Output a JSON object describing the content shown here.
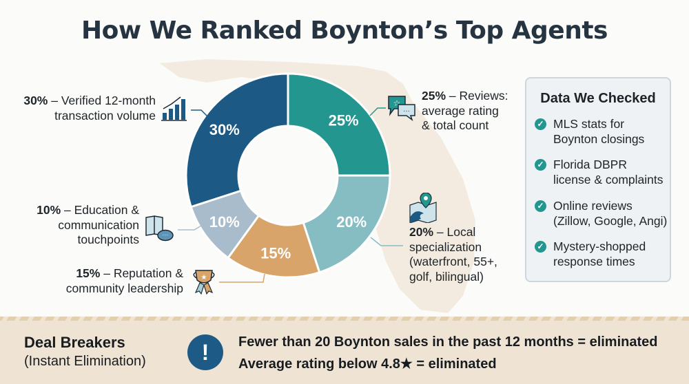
{
  "title": "How We Ranked Boynton’s Top Agents",
  "chart_data": {
    "type": "pie",
    "variant": "donut",
    "title": "How We Ranked Boynton’s Top Agents",
    "slices": [
      {
        "label": "Reviews: average rating & total count",
        "value": 25,
        "display": "25%",
        "color": "#23968f"
      },
      {
        "label": "Local specialization (waterfront, 55+, golf, bilingual)",
        "value": 20,
        "display": "20%",
        "color": "#86bdc3"
      },
      {
        "label": "Reputation & community leadership",
        "value": 15,
        "display": "15%",
        "color": "#d8a46a"
      },
      {
        "label": "Education & communication touchpoints",
        "value": 10,
        "display": "10%",
        "color": "#a9bccb"
      },
      {
        "label": "Verified 12-month transaction volume",
        "value": 30,
        "display": "30%",
        "color": "#1c5a85"
      }
    ]
  },
  "callouts": {
    "volume": {
      "pct": "30%",
      "text1": " – Verified 12-month",
      "text2": "transaction volume",
      "icon": "bar-chart-growth-icon"
    },
    "education": {
      "pct": "10%",
      "text1": " – Education &",
      "text2": "communication",
      "text3": "touchpoints",
      "icon": "book-chat-icon"
    },
    "reputation": {
      "pct": "15%",
      "text1": " – Reputation &",
      "text2": "community leadership",
      "icon": "trophy-ribbon-icon"
    },
    "reviews": {
      "pct": "25%",
      "text1": " – Reviews:",
      "text2": "average rating",
      "text3": "& total count",
      "icon": "review-chat-star-icon"
    },
    "local": {
      "pct": "20%",
      "text1": " – Local",
      "text2": "specialization",
      "text3": "(waterfront, 55+,",
      "text4": "golf, bilingual)",
      "icon": "map-pin-wave-icon"
    }
  },
  "data_box": {
    "heading": "Data We Checked",
    "items": [
      {
        "line1": "MLS stats for",
        "line2": "Boynton closings"
      },
      {
        "line1": "Florida DBPR",
        "line2": "license & complaints"
      },
      {
        "line1": "Online reviews",
        "line2": "(Zillow, Google, Angi)"
      },
      {
        "line1": "Mystery-shopped",
        "line2": "response times"
      }
    ]
  },
  "deal_breakers": {
    "title": "Deal Breakers",
    "subtitle": "(Instant Elimination)",
    "icon_glyph": "!",
    "rules": [
      "Fewer than 20 Boynton sales in the past 12 months = eliminated",
      "Average rating below 4.8★ = eliminated"
    ]
  }
}
